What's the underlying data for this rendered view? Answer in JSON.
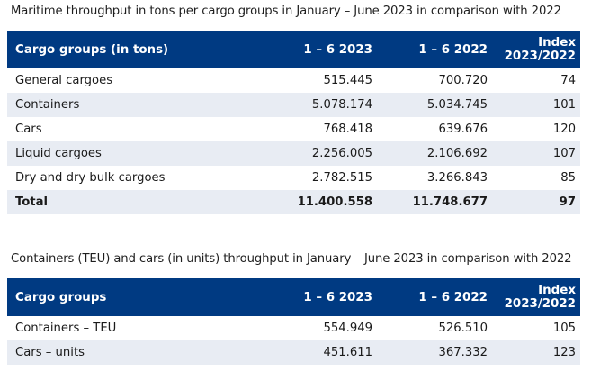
{
  "table1": {
    "caption": "Maritime throughput in tons per cargo groups in January – June 2023 in comparison with 2022",
    "headers": {
      "group": "Cargo groups (in tons)",
      "col2023": "1 – 6 2023",
      "col2022": "1 – 6 2022",
      "index_line1": "Index",
      "index_line2": "2023/2022"
    },
    "rows": [
      {
        "label": "General cargoes",
        "v2023": "515.445",
        "v2022": "700.720",
        "index": "74"
      },
      {
        "label": "Containers",
        "v2023": "5.078.174",
        "v2022": "5.034.745",
        "index": "101"
      },
      {
        "label": "Cars",
        "v2023": "768.418",
        "v2022": "639.676",
        "index": "120"
      },
      {
        "label": "Liquid cargoes",
        "v2023": "2.256.005",
        "v2022": "2.106.692",
        "index": "107"
      },
      {
        "label": "Dry and dry bulk cargoes",
        "v2023": "2.782.515",
        "v2022": "3.266.843",
        "index": "85"
      }
    ],
    "total": {
      "label": "Total",
      "v2023": "11.400.558",
      "v2022": "11.748.677",
      "index": "97"
    }
  },
  "table2": {
    "caption": "Containers (TEU) and cars (in units) throughput in January – June 2023 in comparison with 2022",
    "headers": {
      "group": "Cargo groups",
      "col2023": "1 – 6 2023",
      "col2022": "1 – 6 2022",
      "index_line1": "Index",
      "index_line2": "2023/2022"
    },
    "rows": [
      {
        "label": "Containers – TEU",
        "v2023": "554.949",
        "v2022": "526.510",
        "index": "105"
      },
      {
        "label": "Cars – units",
        "v2023": "451.611",
        "v2022": "367.332",
        "index": "123"
      }
    ]
  },
  "colors": {
    "header_bg": "#003a82",
    "stripe_bg": "#e8ecf3"
  }
}
